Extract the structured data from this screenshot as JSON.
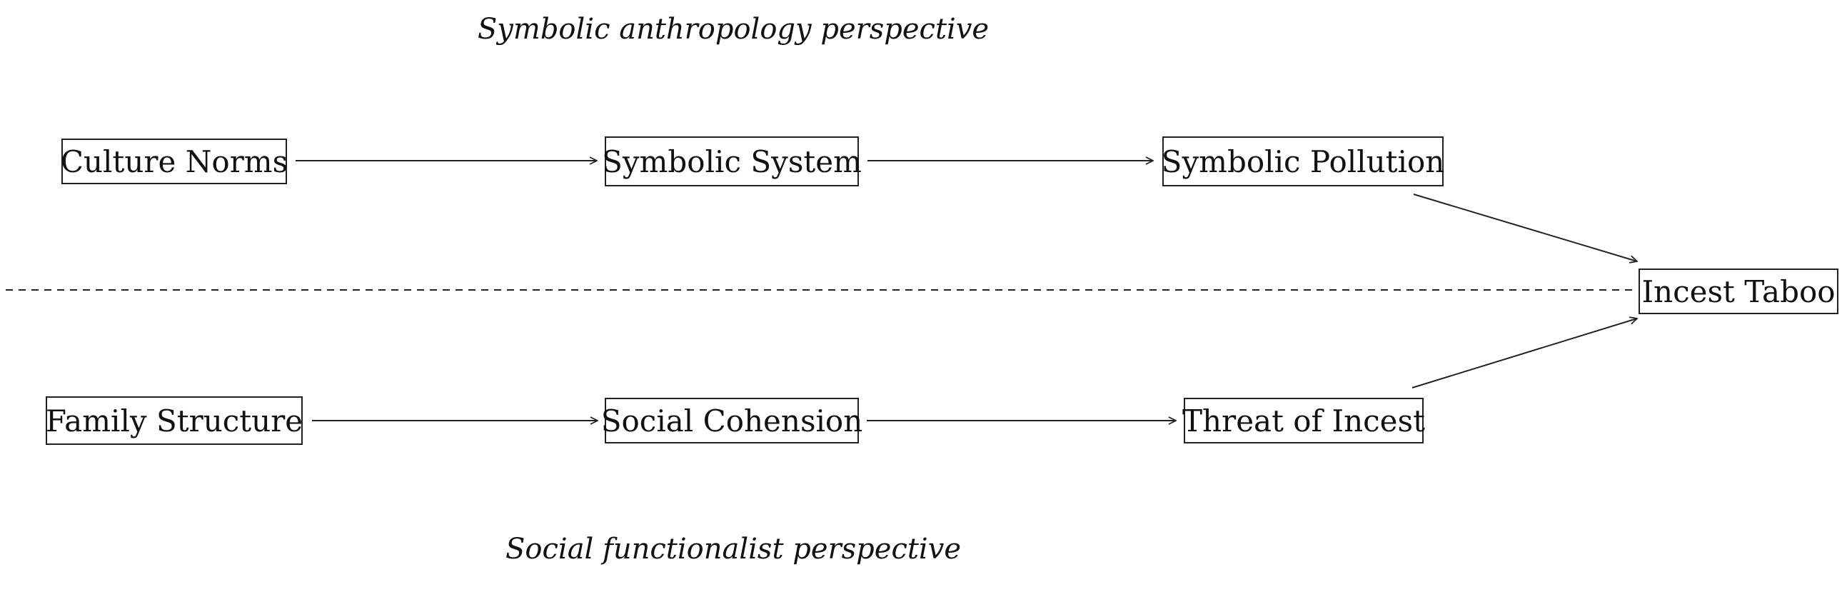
{
  "diagram": {
    "perspectives": {
      "top": "Symbolic anthropology perspective",
      "bottom": "Social functionalist perspective"
    },
    "nodes": {
      "culture_norms": "Culture Norms",
      "symbolic_system": "Symbolic System",
      "symbolic_pollution": "Symbolic Pollution",
      "family_structure": "Family Structure",
      "social_cohension": "Social Cohension",
      "threat_of_incest": "Threat of Incest",
      "incest_taboo": "Incest Taboo"
    },
    "edges": [
      {
        "from": "Culture Norms",
        "to": "Symbolic System"
      },
      {
        "from": "Symbolic System",
        "to": "Symbolic Pollution"
      },
      {
        "from": "Symbolic Pollution",
        "to": "Incest Taboo"
      },
      {
        "from": "Family Structure",
        "to": "Social Cohension"
      },
      {
        "from": "Social Cohension",
        "to": "Threat of Incest"
      },
      {
        "from": "Threat of Incest",
        "to": "Incest Taboo"
      }
    ],
    "divider_style": "dashed",
    "colors": {
      "stroke": "#222222",
      "text": "#111111",
      "background": "#ffffff"
    }
  }
}
